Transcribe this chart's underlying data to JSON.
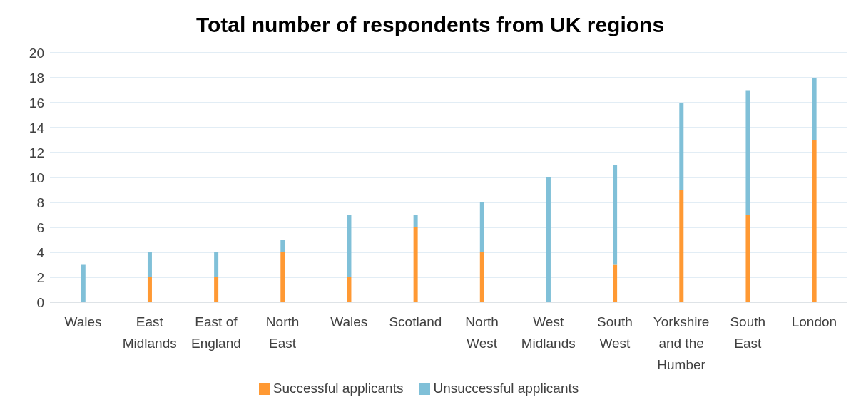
{
  "chart_data": {
    "type": "bar",
    "title": "Total number of respondents from UK regions",
    "categories": [
      "Wales",
      "East Midlands",
      "East of England",
      "North East",
      "Wales",
      "Scotland",
      "North West",
      "West Midlands",
      "South West",
      "Yorkshire and the Humber",
      "South East",
      "London"
    ],
    "stacked": true,
    "ylim": [
      0,
      20
    ],
    "yticks": [
      0,
      2,
      4,
      6,
      8,
      10,
      12,
      14,
      16,
      18,
      20
    ],
    "grid": "y",
    "legend": "bottom",
    "series": [
      {
        "name": "Successful applicants",
        "color": "#ff9933",
        "values": [
          0,
          2,
          2,
          4,
          2,
          6,
          4,
          0,
          3,
          9,
          7,
          13
        ]
      },
      {
        "name": "Unsuccessful applicants",
        "color": "#80c0d8",
        "values": [
          3,
          2,
          2,
          1,
          5,
          1,
          4,
          10,
          8,
          7,
          10,
          5
        ]
      }
    ]
  }
}
